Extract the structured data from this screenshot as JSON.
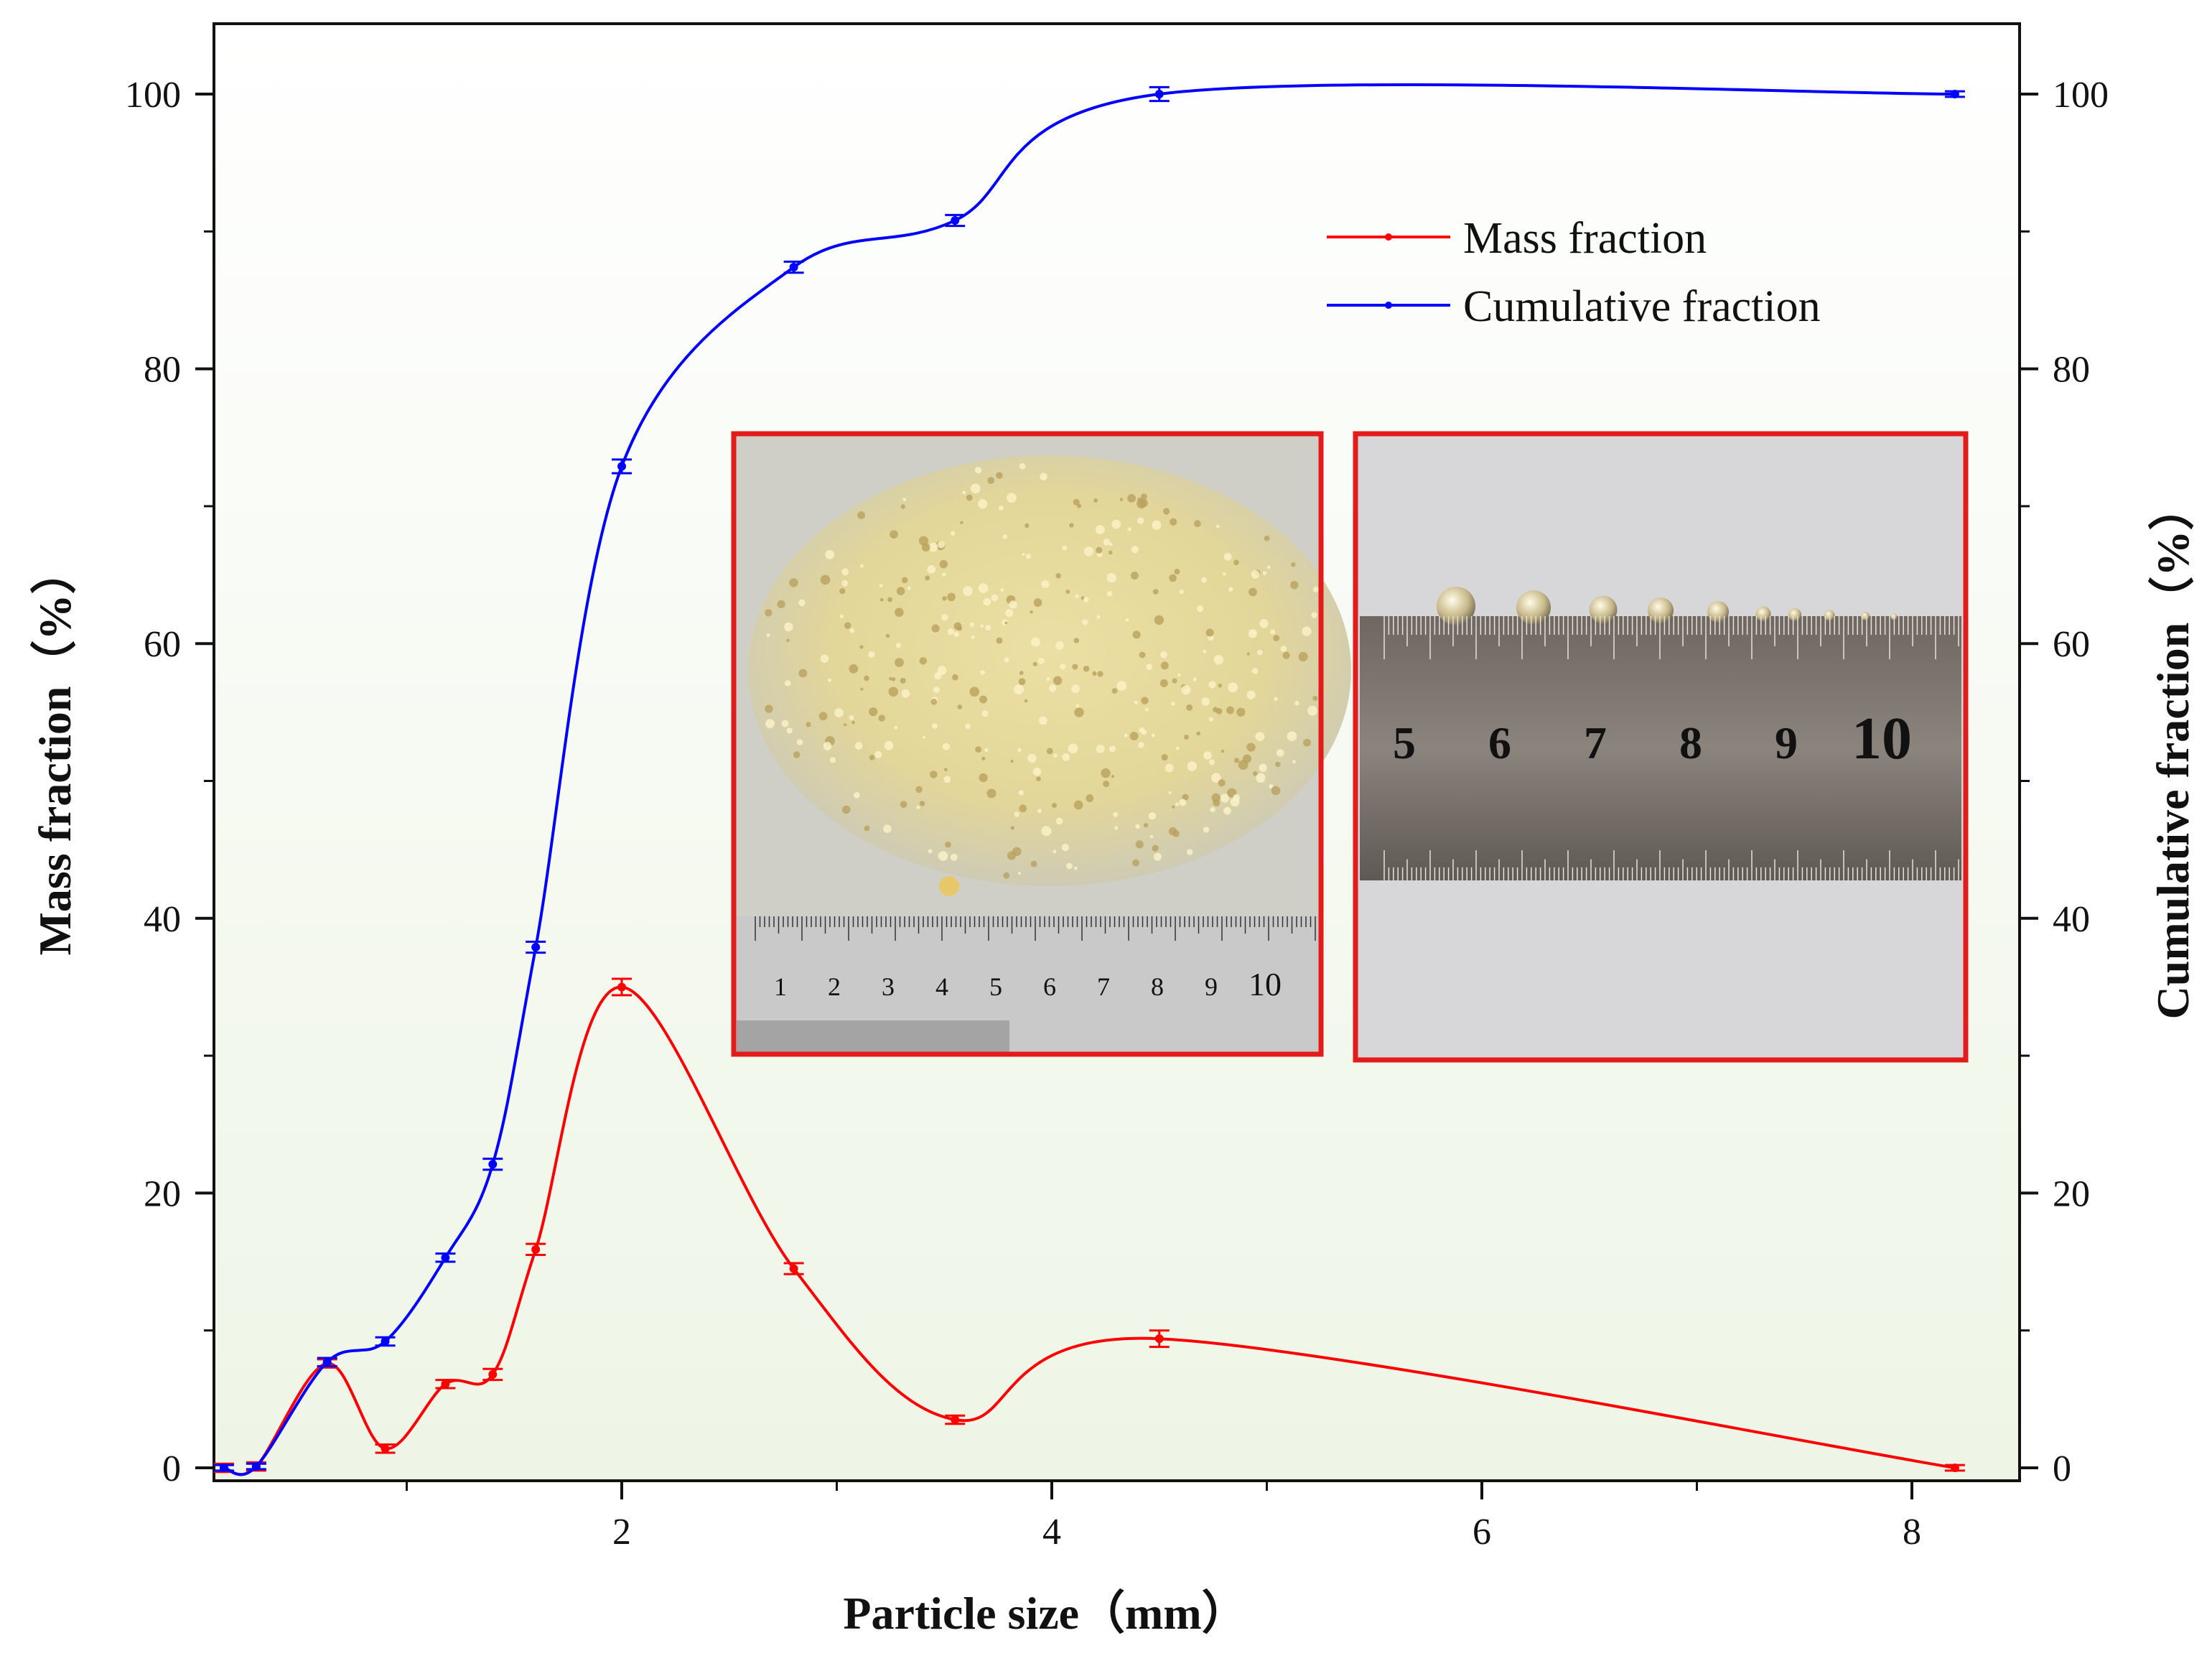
{
  "chart_data": {
    "type": "line",
    "xlabel": "Particle size（mm）",
    "ylabel_left": "Mass fraction（%）",
    "ylabel_right": "Cumulative fraction（%）",
    "xlim": [
      0.0,
      8.5
    ],
    "ylim": [
      -1,
      105
    ],
    "xticks": [
      "2",
      "4",
      "6",
      "8"
    ],
    "yticks": [
      "0",
      "20",
      "40",
      "60",
      "80",
      "100"
    ],
    "legend_placement": "top-right",
    "grid": false,
    "series": [
      {
        "name": "Mass fraction",
        "color": "#ff0000",
        "axis": "left",
        "x": [
          0.15,
          0.3,
          0.63,
          0.9,
          1.18,
          1.4,
          1.6,
          2.0,
          2.8,
          3.55,
          4.5,
          8.2
        ],
        "y": [
          0.0,
          0.1,
          7.6,
          1.4,
          6.1,
          6.8,
          15.9,
          35.0,
          14.5,
          3.5,
          9.4,
          0.0
        ],
        "err": [
          0.3,
          0.3,
          0.3,
          0.3,
          0.3,
          0.4,
          0.4,
          0.6,
          0.4,
          0.3,
          0.6,
          0.2
        ]
      },
      {
        "name": "Cumulative fraction",
        "color": "#0000ff",
        "axis": "right",
        "x": [
          0.15,
          0.3,
          0.63,
          0.9,
          1.18,
          1.4,
          1.6,
          2.0,
          2.8,
          3.55,
          4.5,
          8.2
        ],
        "y": [
          0.0,
          0.1,
          7.7,
          9.2,
          15.3,
          22.1,
          37.9,
          72.9,
          87.4,
          90.8,
          100.0,
          100.0
        ],
        "err": [
          0.2,
          0.2,
          0.3,
          0.3,
          0.3,
          0.4,
          0.4,
          0.5,
          0.4,
          0.4,
          0.5,
          0.2
        ]
      }
    ],
    "insets": [
      {
        "name": "particle-pile-photo",
        "ruler_labels": [
          "1",
          "2",
          "3",
          "4",
          "5",
          "6",
          "7",
          "8",
          "9",
          "10"
        ]
      },
      {
        "name": "particles-on-ruler-photo",
        "ruler_labels": [
          "5",
          "6",
          "7",
          "8",
          "9",
          "10"
        ]
      }
    ]
  }
}
